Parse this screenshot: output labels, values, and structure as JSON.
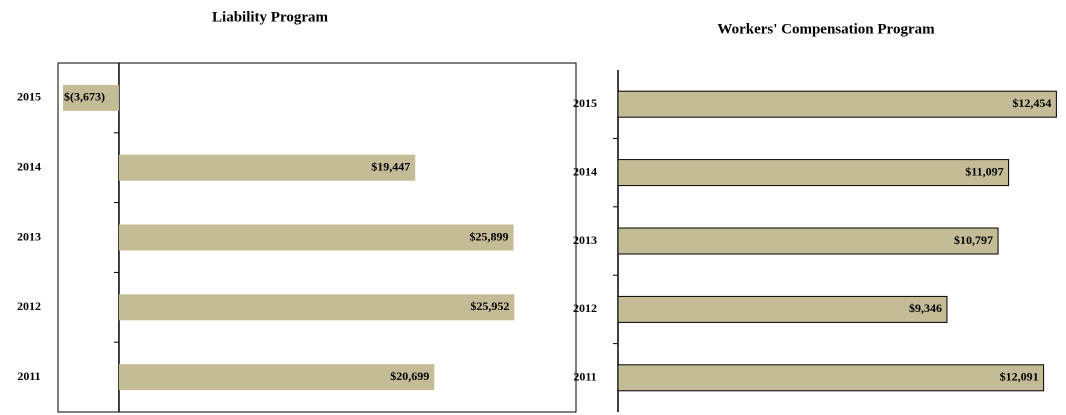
{
  "chart_data": [
    {
      "type": "bar",
      "orientation": "horizontal",
      "title": "Liability Program",
      "categories": [
        "2015",
        "2014",
        "2013",
        "2012",
        "2011"
      ],
      "values": [
        -3673,
        19447,
        25899,
        25952,
        20699
      ],
      "value_labels": [
        "$(3,673)",
        "$19,447",
        "$25,899",
        "$25,952",
        "$20,699"
      ],
      "color": "#c4bb97",
      "xlim": [
        -4000,
        30000
      ],
      "bar_border": false,
      "frame": true
    },
    {
      "type": "bar",
      "orientation": "horizontal",
      "title": "Workers' Compensation Program",
      "categories": [
        "2015",
        "2014",
        "2013",
        "2012",
        "2011"
      ],
      "values": [
        12454,
        11097,
        10797,
        9346,
        12091
      ],
      "value_labels": [
        "$12,454",
        "$11,097",
        "$10,797",
        "$9,346",
        "$12,091"
      ],
      "color": "#c4bb97",
      "xlim": [
        0,
        12500
      ],
      "bar_border": true,
      "frame": false
    }
  ]
}
